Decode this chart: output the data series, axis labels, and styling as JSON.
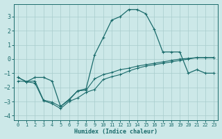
{
  "xlabel": "Humidex (Indice chaleur)",
  "xlim": [
    -0.5,
    23.5
  ],
  "ylim": [
    -4.3,
    3.9
  ],
  "xticks": [
    0,
    1,
    2,
    3,
    4,
    5,
    6,
    7,
    8,
    9,
    10,
    11,
    12,
    13,
    14,
    15,
    16,
    17,
    18,
    19,
    20,
    21,
    22,
    23
  ],
  "yticks": [
    -4,
    -3,
    -2,
    -1,
    0,
    1,
    2,
    3
  ],
  "bg_color": "#cce8e8",
  "line_color": "#1a6b6b",
  "curve_bell_x": [
    0,
    1,
    2,
    3,
    4,
    5,
    6,
    7,
    8,
    9,
    10,
    11,
    12,
    13,
    14,
    15,
    16,
    17,
    18,
    19,
    20,
    21,
    22,
    23
  ],
  "curve_bell_y": [
    -1.3,
    -1.6,
    -1.3,
    -1.3,
    -1.55,
    -3.35,
    -2.85,
    -2.25,
    -2.1,
    0.3,
    1.5,
    2.75,
    3.0,
    3.5,
    3.5,
    3.2,
    2.1,
    0.5,
    0.5,
    0.5,
    -1.0,
    -0.75,
    -1.0,
    -1.0
  ],
  "curve_line1_x": [
    0,
    1,
    2,
    3,
    4,
    5,
    6,
    7,
    8,
    9,
    10,
    11,
    12,
    13,
    14,
    15,
    16,
    17,
    18,
    19,
    20,
    21,
    22,
    23
  ],
  "curve_line1_y": [
    -1.3,
    -1.6,
    -1.55,
    -2.9,
    -3.05,
    -3.35,
    -2.9,
    -2.25,
    -2.2,
    -1.4,
    -1.1,
    -0.95,
    -0.75,
    -0.65,
    -0.5,
    -0.4,
    -0.3,
    -0.2,
    -0.1,
    0.0,
    0.05,
    0.1,
    0.1,
    0.1
  ],
  "curve_line2_x": [
    0,
    1,
    2,
    3,
    4,
    5,
    6,
    7,
    8,
    9,
    10,
    11,
    12,
    13,
    14,
    15,
    16,
    17,
    18,
    19,
    20,
    21,
    22,
    23
  ],
  "curve_line2_y": [
    -1.55,
    -1.6,
    -1.7,
    -2.95,
    -3.15,
    -3.5,
    -3.0,
    -2.75,
    -2.35,
    -2.15,
    -1.45,
    -1.25,
    -1.1,
    -0.85,
    -0.65,
    -0.5,
    -0.4,
    -0.3,
    -0.2,
    -0.1,
    0.0,
    0.1,
    0.1,
    0.1
  ]
}
